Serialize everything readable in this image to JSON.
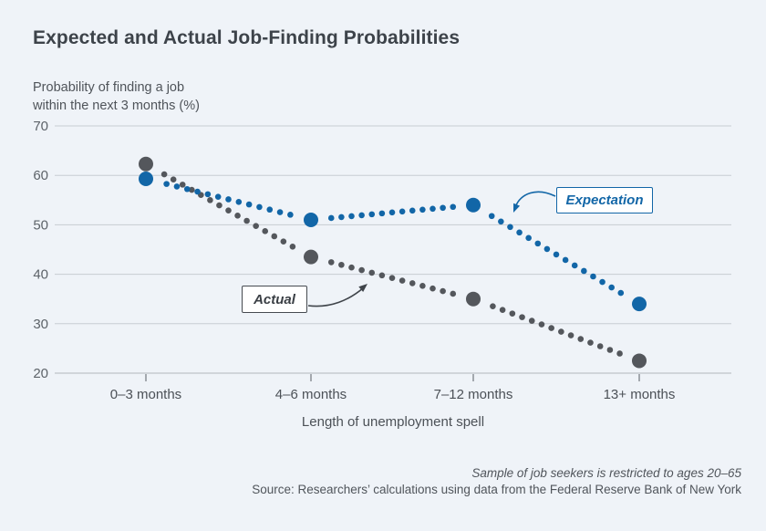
{
  "header": {
    "title": "Expected and Actual Job-Finding Probabilities"
  },
  "chart_data": {
    "type": "line",
    "title": "Expected and Actual Job-Finding Probabilities",
    "ylabel_lines": [
      "Probability of finding a job",
      "within the next 3 months (%)"
    ],
    "xlabel": "Length of unemployment spell",
    "categories": [
      "0–3 months",
      "4–6 months",
      "7–12 months",
      "13+ months"
    ],
    "series": [
      {
        "name": "Actual",
        "values": [
          62.3,
          43.5,
          35,
          22.5
        ],
        "color": "#54575c",
        "style": "dotted"
      },
      {
        "name": "Expectation",
        "values": [
          59.3,
          51,
          54,
          34
        ],
        "color": "#1266a7",
        "style": "dotted"
      }
    ],
    "yticks": [
      70,
      60,
      50,
      40,
      30,
      20
    ],
    "ylim": [
      20,
      70
    ],
    "grid": true,
    "legend": "annotation-boxes",
    "annotations": [
      {
        "label": "Expectation",
        "series": "Expectation",
        "color": "#1266a7"
      },
      {
        "label": "Actual",
        "series": "Actual",
        "color": "#464b51"
      }
    ]
  },
  "footer": {
    "note": "Sample of job seekers is restricted to ages 20–65",
    "source": "Source: Researchers’ calculations using data from the Federal Reserve Bank of New York"
  },
  "colors": {
    "background": "#eff3f8",
    "expectation": "#1266a7",
    "actual": "#54575c",
    "gridline": "#c7ccd2",
    "axis_line": "#b2b7bd",
    "tick_text": "#5d6369",
    "category_text": "#4c5157",
    "title_text": "#3d434a"
  }
}
